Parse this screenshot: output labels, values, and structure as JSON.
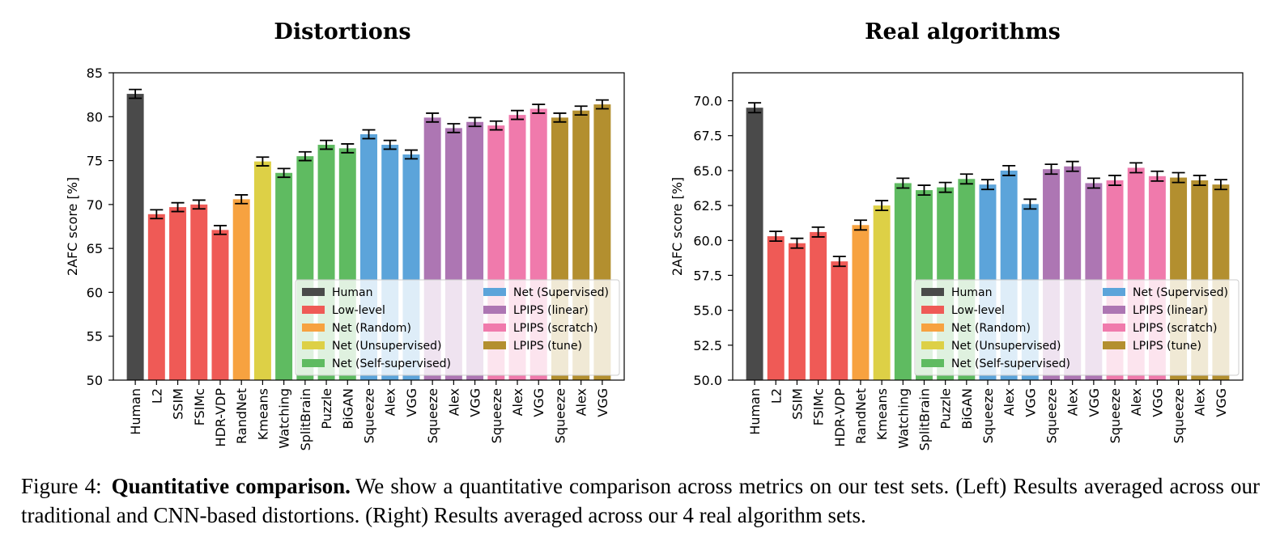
{
  "categories": [
    {
      "name": "Human",
      "color": "#4a4a4a"
    },
    {
      "name": "Low-level",
      "color": "#ef5a56"
    },
    {
      "name": "Net (Random)",
      "color": "#f7a240"
    },
    {
      "name": "Net (Unsupervised)",
      "color": "#ddd046"
    },
    {
      "name": "Net (Self-supervised)",
      "color": "#5fbb61"
    },
    {
      "name": "Net (Supervised)",
      "color": "#5ca4da"
    },
    {
      "name": "LPIPS (linear)",
      "color": "#ad76b3"
    },
    {
      "name": "LPIPS (scratch)",
      "color": "#f07aac"
    },
    {
      "name": "LPIPS (tune)",
      "color": "#b38f2f"
    }
  ],
  "chart_data": [
    {
      "type": "bar",
      "title": "Distortions",
      "ylabel": "2AFC score [%]",
      "xlabel": "",
      "ylim": [
        50,
        85
      ],
      "yticks": [
        "50",
        "55",
        "60",
        "65",
        "70",
        "75",
        "80",
        "85"
      ],
      "legend_position": "lower-right",
      "categories": [
        "Human",
        "L2",
        "SSIM",
        "FSIMc",
        "HDR-VDP",
        "RandNet",
        "Kmeans",
        "Watching",
        "SplitBrain",
        "Puzzle",
        "BiGAN",
        "Squeeze",
        "Alex",
        "VGG",
        "Squeeze",
        "Alex",
        "VGG",
        "Squeeze",
        "Alex",
        "VGG",
        "Squeeze",
        "Alex",
        "VGG"
      ],
      "groups": [
        0,
        1,
        1,
        1,
        1,
        2,
        3,
        4,
        4,
        4,
        4,
        5,
        5,
        5,
        6,
        6,
        6,
        7,
        7,
        7,
        8,
        8,
        8
      ],
      "values": [
        82.6,
        68.9,
        69.7,
        70.0,
        67.1,
        70.6,
        74.9,
        73.6,
        75.5,
        76.8,
        76.4,
        78.0,
        76.8,
        75.7,
        79.9,
        78.7,
        79.4,
        79.0,
        80.2,
        80.9,
        79.9,
        80.7,
        81.4
      ],
      "errors": [
        0.5,
        0.5,
        0.5,
        0.5,
        0.5,
        0.5,
        0.5,
        0.5,
        0.5,
        0.5,
        0.5,
        0.5,
        0.5,
        0.5,
        0.5,
        0.5,
        0.5,
        0.5,
        0.5,
        0.5,
        0.5,
        0.5,
        0.5
      ]
    },
    {
      "type": "bar",
      "title": "Real algorithms",
      "ylabel": "2AFC score [%]",
      "xlabel": "",
      "ylim": [
        50,
        72
      ],
      "yticks": [
        "50.0",
        "52.5",
        "55.0",
        "57.5",
        "60.0",
        "62.5",
        "65.0",
        "67.5",
        "70.0"
      ],
      "legend_position": "lower-right",
      "categories": [
        "Human",
        "L2",
        "SSIM",
        "FSIMc",
        "HDR-VDP",
        "RandNet",
        "Kmeans",
        "Watching",
        "SplitBrain",
        "Puzzle",
        "BiGAN",
        "Squeeze",
        "Alex",
        "VGG",
        "Squeeze",
        "Alex",
        "VGG",
        "Squeeze",
        "Alex",
        "VGG",
        "Squeeze",
        "Alex",
        "VGG"
      ],
      "groups": [
        0,
        1,
        1,
        1,
        1,
        2,
        3,
        4,
        4,
        4,
        4,
        5,
        5,
        5,
        6,
        6,
        6,
        7,
        7,
        7,
        8,
        8,
        8
      ],
      "values": [
        69.5,
        60.3,
        59.8,
        60.6,
        58.5,
        61.1,
        62.5,
        64.1,
        63.6,
        63.8,
        64.4,
        64.0,
        65.0,
        62.6,
        65.1,
        65.3,
        64.1,
        64.3,
        65.2,
        64.6,
        64.5,
        64.3,
        64.0
      ],
      "errors": [
        0.35,
        0.35,
        0.35,
        0.35,
        0.35,
        0.35,
        0.35,
        0.35,
        0.35,
        0.35,
        0.35,
        0.35,
        0.35,
        0.35,
        0.35,
        0.35,
        0.35,
        0.35,
        0.35,
        0.35,
        0.35,
        0.35,
        0.35
      ]
    }
  ],
  "caption": {
    "label": "Figure 4:",
    "title": "Quantitative comparison.",
    "text": "We show a quantitative comparison across metrics on our test sets. (Left) Results averaged across our traditional and CNN-based distortions. (Right) Results averaged across our 4 real algorithm sets."
  }
}
